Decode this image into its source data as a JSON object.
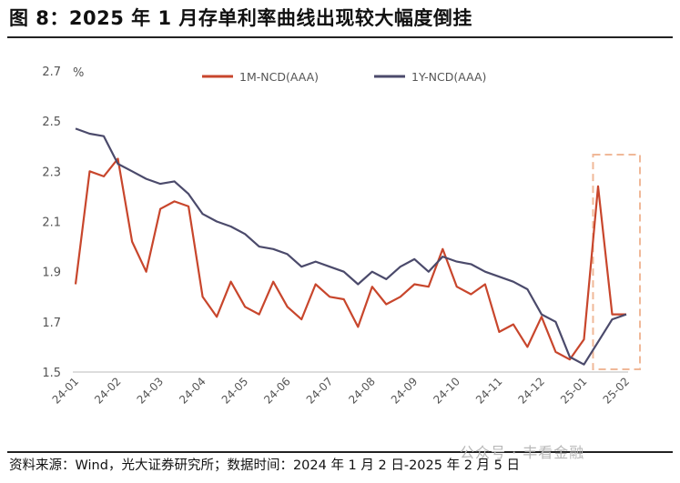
{
  "header": {
    "title": "图 8：2025 年 1 月存单利率曲线出现较大幅度倒挂"
  },
  "footer": {
    "source": "资料来源：Wind，光大证券研究所；数据时间：2024 年 1 月 2 日-2025 年 2 月 5 日",
    "watermark": "公众号 · 丰看金融"
  },
  "colors": {
    "one_month": "#c8462c",
    "one_year": "#4b4a6b",
    "highlight_box": "#f0b898"
  },
  "chart_data": {
    "type": "line",
    "y_unit": "%",
    "ylim": [
      1.5,
      2.7
    ],
    "y_ticks": [
      "1.5",
      "1.7",
      "1.9",
      "2.1",
      "2.3",
      "2.5",
      "2.7"
    ],
    "x_ticks": [
      "24-01",
      "24-02",
      "24-03",
      "24-04",
      "24-05",
      "24-06",
      "24-07",
      "24-08",
      "24-09",
      "24-10",
      "24-11",
      "24-12",
      "25-01",
      "25-02"
    ],
    "legend_position": "top",
    "grid": false,
    "highlight": {
      "from": "25-01",
      "to": "25-02",
      "style": "dashed box"
    },
    "x": [
      "24-01",
      "24-01",
      "24-01",
      "24-02",
      "24-02",
      "24-02",
      "24-03",
      "24-03",
      "24-04",
      "24-04",
      "24-04",
      "24-05",
      "24-05",
      "24-05",
      "24-06",
      "24-06",
      "24-06",
      "24-07",
      "24-07",
      "24-07",
      "24-08",
      "24-08",
      "24-08",
      "24-09",
      "24-09",
      "24-09",
      "24-10",
      "24-10",
      "24-10",
      "24-11",
      "24-11",
      "24-11",
      "24-12",
      "24-12",
      "24-12",
      "25-01",
      "25-01",
      "25-01",
      "25-02",
      "25-02"
    ],
    "series": [
      {
        "name": "1M-NCD(AAA)",
        "values": [
          1.85,
          2.3,
          2.28,
          2.35,
          2.02,
          1.9,
          2.15,
          2.18,
          2.16,
          1.8,
          1.72,
          1.86,
          1.76,
          1.73,
          1.86,
          1.76,
          1.71,
          1.85,
          1.8,
          1.79,
          1.68,
          1.84,
          1.77,
          1.8,
          1.85,
          1.84,
          1.99,
          1.84,
          1.81,
          1.85,
          1.66,
          1.69,
          1.6,
          1.72,
          1.58,
          1.55,
          1.63,
          2.24,
          1.73,
          1.73
        ]
      },
      {
        "name": "1Y-NCD(AAA)",
        "values": [
          2.47,
          2.45,
          2.44,
          2.33,
          2.3,
          2.27,
          2.25,
          2.26,
          2.21,
          2.13,
          2.1,
          2.08,
          2.05,
          2.0,
          1.99,
          1.97,
          1.92,
          1.94,
          1.92,
          1.9,
          1.85,
          1.9,
          1.87,
          1.92,
          1.95,
          1.9,
          1.96,
          1.94,
          1.93,
          1.9,
          1.88,
          1.86,
          1.83,
          1.73,
          1.7,
          1.56,
          1.53,
          1.62,
          1.71,
          1.73
        ]
      }
    ]
  }
}
